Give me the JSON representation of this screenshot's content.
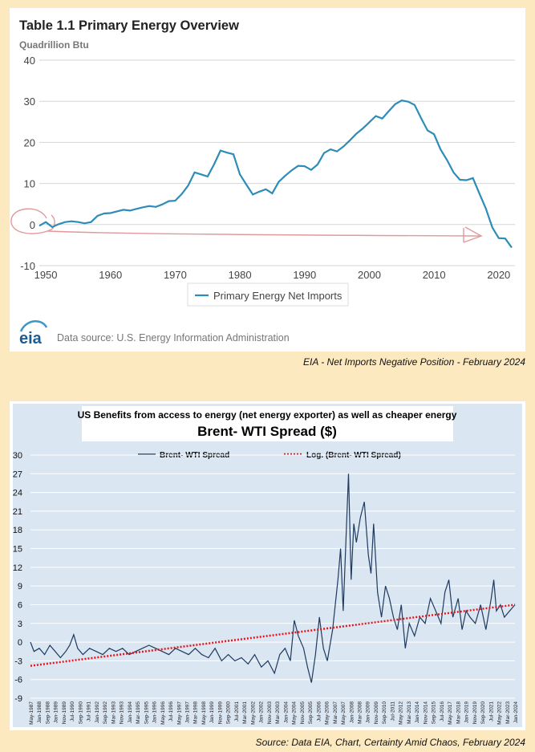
{
  "captions": {
    "top": "EIA - Net Imports Negative Position - February 2024",
    "bottom": "Source: Data EIA, Chart, Certainty Amid Chaos, February 2024"
  },
  "colors": {
    "page_bg": "#fde9bf",
    "eia_line": "#2e8cb8",
    "annotation": "#e0999c",
    "spread_line": "#1f3a5c",
    "trend_line": "#e0171b",
    "plot_bg": "#dbe6f3"
  },
  "chart_data": [
    {
      "type": "line",
      "title": "Table 1.1 Primary Energy Overview",
      "ylabel": "Quadrillion Btu",
      "xlabel": "",
      "xlim": [
        1949,
        2022.5
      ],
      "ylim": [
        -10,
        40
      ],
      "xticks": [
        1950,
        1960,
        1970,
        1980,
        1990,
        2000,
        2010,
        2020
      ],
      "yticks": [
        -10,
        0,
        10,
        20,
        30,
        40
      ],
      "grid": true,
      "legend": {
        "position": "bottom-center",
        "entries": [
          "Primary Energy Net Imports"
        ]
      },
      "source": "Data source: U.S. Energy Information Administration",
      "logo": "eia",
      "series": [
        {
          "name": "Primary Energy Net Imports",
          "x": [
            1949,
            1950,
            1951,
            1952,
            1953,
            1954,
            1955,
            1956,
            1957,
            1958,
            1959,
            1960,
            1961,
            1962,
            1963,
            1964,
            1965,
            1966,
            1967,
            1968,
            1969,
            1970,
            1971,
            1972,
            1973,
            1974,
            1975,
            1976,
            1977,
            1978,
            1979,
            1980,
            1981,
            1982,
            1983,
            1984,
            1985,
            1986,
            1987,
            1988,
            1989,
            1990,
            1991,
            1992,
            1993,
            1994,
            1995,
            1996,
            1997,
            1998,
            1999,
            2000,
            2001,
            2002,
            2003,
            2004,
            2005,
            2006,
            2007,
            2008,
            2009,
            2010,
            2011,
            2012,
            2013,
            2014,
            2015,
            2016,
            2017,
            2018,
            2019,
            2020,
            2021,
            2022
          ],
          "values": [
            -0.3,
            0.6,
            -0.6,
            0.1,
            0.6,
            0.8,
            0.6,
            0.3,
            0.6,
            2.1,
            2.7,
            2.8,
            3.2,
            3.6,
            3.4,
            3.8,
            4.2,
            4.5,
            4.3,
            4.9,
            5.7,
            5.8,
            7.4,
            9.5,
            12.7,
            12.2,
            11.7,
            14.6,
            18.0,
            17.5,
            17.1,
            12.2,
            9.7,
            7.3,
            8.0,
            8.6,
            7.6,
            10.4,
            11.9,
            13.2,
            14.3,
            14.2,
            13.3,
            14.6,
            17.4,
            18.3,
            17.8,
            19.0,
            20.5,
            22.1,
            23.4,
            24.9,
            26.4,
            25.8,
            27.6,
            29.3,
            30.2,
            29.9,
            29.1,
            25.9,
            22.9,
            22.0,
            18.3,
            15.7,
            12.7,
            10.9,
            10.8,
            11.3,
            7.6,
            3.9,
            -0.7,
            -3.3,
            -3.4,
            -5.6
          ]
        }
      ],
      "annotation": "hand-drawn red circle around the zero line at 1950 with an arrow pointing to ~2017"
    },
    {
      "type": "line",
      "title": "Brent- WTI Spread ($)",
      "subtitle": "US Benefits from access to energy (net energy exporter) as well as cheaper energy",
      "xlabel": "",
      "ylabel": "",
      "ylim": [
        -9,
        30
      ],
      "yticks": [
        -9,
        -6,
        -3,
        0,
        3,
        6,
        9,
        12,
        15,
        18,
        21,
        24,
        27,
        30
      ],
      "x_tick_labels": [
        "May-1987",
        "Jan-1988",
        "Sep-1988",
        "Jan-1989",
        "Nov-1989",
        "Jul-1990",
        "Sep-1990",
        "Jul-1991",
        "Jan-1992",
        "Sep-1992",
        "Mar-1993",
        "Nov-1993",
        "Jan-1994",
        "Mar-1995",
        "Sep-1995",
        "Jan-1996",
        "May-1996",
        "Jul-1996",
        "May-1997",
        "Jan-1997",
        "Mar-1998",
        "May-1998",
        "Jan-1999",
        "Nov-1999",
        "Sep-2000",
        "Jul-2001",
        "Mar-2001",
        "May-2002",
        "Jan-2002",
        "Nov-2003",
        "Mar-2003",
        "Jan-2004",
        "May-2004",
        "Nov-2005",
        "Sep-2005",
        "Jul-2006",
        "May-2006",
        "Mar-2007",
        "May-2007",
        "Jan-2008",
        "Mar-2008",
        "Jan-2009",
        "Nov-2009",
        "Sep-2010",
        "Jul-2011",
        "May-2012",
        "Mar-2013",
        "Jan-2014",
        "Nov-2014",
        "Sep-2015",
        "Jul-2016",
        "May-2017",
        "Mar-2018",
        "Jan-2019",
        "Nov-2019",
        "Sep-2020",
        "Jul-2021",
        "May-2022",
        "Mar-2023",
        "Jan-2024"
      ],
      "grid": true,
      "legend": {
        "position": "top",
        "entries": [
          "Brent- WTI Spread",
          "Log. (Brent- WTI Spread)"
        ]
      },
      "x_range": [
        1987.33,
        2024.0
      ],
      "series": [
        {
          "name": "Brent- WTI Spread",
          "x": [
            1987.33,
            1987.6,
            1988.0,
            1988.4,
            1988.8,
            1989.2,
            1989.6,
            1990.0,
            1990.3,
            1990.6,
            1990.9,
            1991.3,
            1991.8,
            1992.3,
            1992.8,
            1993.3,
            1993.8,
            1994.3,
            1994.8,
            1995.3,
            1995.8,
            1996.3,
            1996.8,
            1997.3,
            1997.8,
            1998.3,
            1998.8,
            1999.3,
            1999.8,
            2000.3,
            2000.8,
            2001.3,
            2001.8,
            2002.3,
            2002.8,
            2003.3,
            2003.8,
            2004.3,
            2004.8,
            2005.3,
            2005.8,
            2006.2,
            2006.6,
            2007.0,
            2007.3,
            2007.6,
            2008.0,
            2008.3,
            2008.6,
            2008.9,
            2009.2,
            2009.5,
            2009.8,
            2010.2,
            2010.6,
            2010.8,
            2011.0,
            2011.2,
            2011.4,
            2011.6,
            2011.8,
            2012.0,
            2012.3,
            2012.6,
            2012.9,
            2013.1,
            2013.3,
            2013.6,
            2013.9,
            2014.2,
            2014.5,
            2014.8,
            2015.1,
            2015.4,
            2015.7,
            2016.0,
            2016.4,
            2016.8,
            2017.2,
            2017.6,
            2018.0,
            2018.4,
            2018.7,
            2019.0,
            2019.3,
            2019.7,
            2020.0,
            2020.3,
            2020.6,
            2021.0,
            2021.4,
            2021.8,
            2022.2,
            2022.4,
            2022.6,
            2022.9,
            2023.2,
            2023.6,
            2024.0
          ],
          "values": [
            0,
            -1.5,
            -1,
            -2,
            -0.5,
            -1.5,
            -2.5,
            -1.5,
            -0.5,
            1.2,
            -1,
            -2,
            -1,
            -1.5,
            -2,
            -1,
            -1.5,
            -1,
            -2,
            -1.5,
            -1,
            -0.5,
            -1,
            -1.5,
            -2,
            -1,
            -1.5,
            -2,
            -1,
            -2,
            -2.5,
            -1,
            -3,
            -2,
            -3,
            -2.5,
            -3.5,
            -2,
            -4,
            -3,
            -5,
            -2,
            -1,
            -3,
            3.5,
            1,
            -1,
            -4,
            -6.5,
            -2,
            4,
            -1,
            -3,
            2,
            10,
            15,
            5,
            16,
            27,
            10,
            19,
            16,
            20,
            22.5,
            14,
            11,
            19,
            8,
            4,
            9,
            7,
            4,
            2,
            6,
            -1,
            3,
            1,
            4,
            3,
            7,
            5,
            3,
            8,
            10,
            4,
            7,
            2,
            5,
            4,
            3,
            6,
            2,
            7,
            10,
            5,
            6,
            4,
            5,
            6
          ]
        },
        {
          "name": "Log. (Brent- WTI Spread)",
          "style": "dotted",
          "x": [
            1987.33,
            2024.0
          ],
          "values": [
            -3.8,
            6.0
          ]
        }
      ]
    }
  ]
}
